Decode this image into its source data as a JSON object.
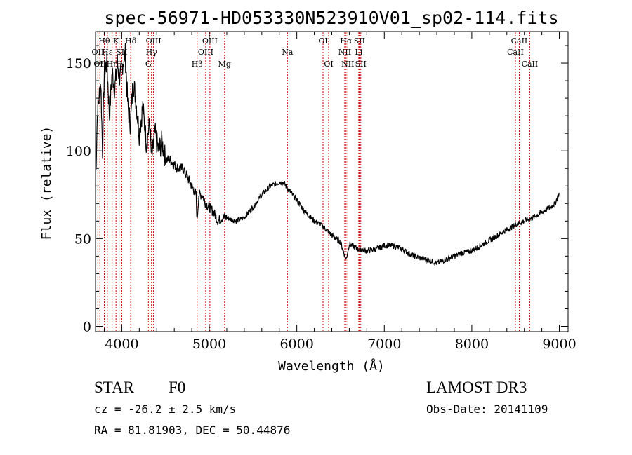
{
  "chart_data": {
    "type": "line",
    "title": "spec-56971-HD053330N523910V01_sp02-114.fits",
    "xlabel": "Wavelength (Å)",
    "ylabel": "Flux (relative)",
    "xlim": [
      3700,
      9100
    ],
    "ylim": [
      -3,
      168
    ],
    "xticks": [
      "4000",
      "5000",
      "6000",
      "7000",
      "8000",
      "9000"
    ],
    "xtick_values": [
      4000,
      5000,
      6000,
      7000,
      8000,
      9000
    ],
    "yticks": [
      "0",
      "50",
      "100",
      "150"
    ],
    "ytick_values": [
      0,
      50,
      100,
      150
    ],
    "grid": false,
    "series": [
      {
        "x": [
          3700,
          3720,
          3740,
          3760,
          3780,
          3800,
          3830,
          3860,
          3890,
          3920,
          3950,
          3980,
          4010,
          4040,
          4070,
          4100,
          4130,
          4160,
          4200,
          4240,
          4280,
          4320,
          4340,
          4380,
          4420,
          4460,
          4500,
          4550,
          4600,
          4650,
          4700,
          4750,
          4800,
          4850,
          4860,
          4880,
          4920,
          4960,
          5000,
          5050,
          5100,
          5150,
          5200,
          5300,
          5400,
          5500,
          5600,
          5700,
          5800,
          5850,
          5900,
          5950,
          6000,
          6100,
          6200,
          6300,
          6400,
          6500,
          6563,
          6600,
          6700,
          6800,
          6900,
          7000,
          7100,
          7200,
          7300,
          7400,
          7500,
          7600,
          7700,
          7800,
          7900,
          8000,
          8100,
          8200,
          8300,
          8400,
          8500,
          8600,
          8700,
          8800,
          8900,
          8950,
          9000
        ],
        "y": [
          80,
          120,
          130,
          140,
          100,
          145,
          150,
          120,
          145,
          135,
          150,
          140,
          150,
          155,
          125,
          115,
          140,
          130,
          110,
          125,
          105,
          115,
          95,
          110,
          100,
          105,
          95,
          95,
          92,
          90,
          90,
          85,
          80,
          75,
          60,
          75,
          75,
          70,
          68,
          65,
          60,
          62,
          62,
          60,
          62,
          68,
          75,
          80,
          82,
          82,
          78,
          75,
          72,
          65,
          60,
          57,
          52,
          48,
          38,
          47,
          44,
          43,
          44,
          46,
          46,
          44,
          41,
          39,
          38,
          36,
          38,
          40,
          42,
          43,
          46,
          49,
          52,
          55,
          58,
          60,
          62,
          65,
          68,
          70,
          76
        ]
      }
    ]
  },
  "spectral_lines": [
    {
      "wl": 3727,
      "label": "OII",
      "row": 2
    },
    {
      "wl": 3750,
      "label": "OII",
      "row": 3
    },
    {
      "wl": 3800,
      "label": "Hθ",
      "row": 1
    },
    {
      "wl": 3835,
      "label": "Hε",
      "row": 2
    },
    {
      "wl": 3890,
      "label": "Hη",
      "row": 3
    },
    {
      "wl": 3934,
      "label": "K",
      "row": 1
    },
    {
      "wl": 3970,
      "label": "H",
      "row": 3
    },
    {
      "wl": 4000,
      "label": "SII",
      "row": 2
    },
    {
      "wl": 4102,
      "label": "Hδ",
      "row": 1
    },
    {
      "wl": 4304,
      "label": "G",
      "row": 3
    },
    {
      "wl": 4340,
      "label": "Hγ",
      "row": 2
    },
    {
      "wl": 4363,
      "label": "OIII",
      "row": 1
    },
    {
      "wl": 4861,
      "label": "Hβ",
      "row": 3
    },
    {
      "wl": 4959,
      "label": "OIII",
      "row": 2
    },
    {
      "wl": 5007,
      "label": "OIII",
      "row": 1
    },
    {
      "wl": 5175,
      "label": "Mg",
      "row": 3
    },
    {
      "wl": 5893,
      "label": "Na",
      "row": 2
    },
    {
      "wl": 6300,
      "label": "OI",
      "row": 1
    },
    {
      "wl": 6364,
      "label": "OI",
      "row": 3
    },
    {
      "wl": 6548,
      "label": "NII",
      "row": 2
    },
    {
      "wl": 6563,
      "label": "Hα",
      "row": 1
    },
    {
      "wl": 6583,
      "label": "NII",
      "row": 3
    },
    {
      "wl": 6708,
      "label": "Li",
      "row": 2
    },
    {
      "wl": 6716,
      "label": "SII",
      "row": 1
    },
    {
      "wl": 6731,
      "label": "SII",
      "row": 3
    },
    {
      "wl": 8498,
      "label": "CaII",
      "row": 2
    },
    {
      "wl": 8542,
      "label": "CaII",
      "row": 1
    },
    {
      "wl": 8662,
      "label": "CaII",
      "row": 3
    }
  ],
  "info": {
    "object_class": "STAR",
    "subclass": "F0",
    "survey": "LAMOST DR3",
    "redshift": "cz = -26.2 ± 2.5 km/s",
    "obs_date": "Obs-Date: 20141109",
    "coords": "RA =  81.81903, DEC =  50.44876"
  },
  "colors": {
    "spectrum": "#000000",
    "line_markers": "#cc0000",
    "axes": "#000000",
    "background": "#ffffff"
  }
}
